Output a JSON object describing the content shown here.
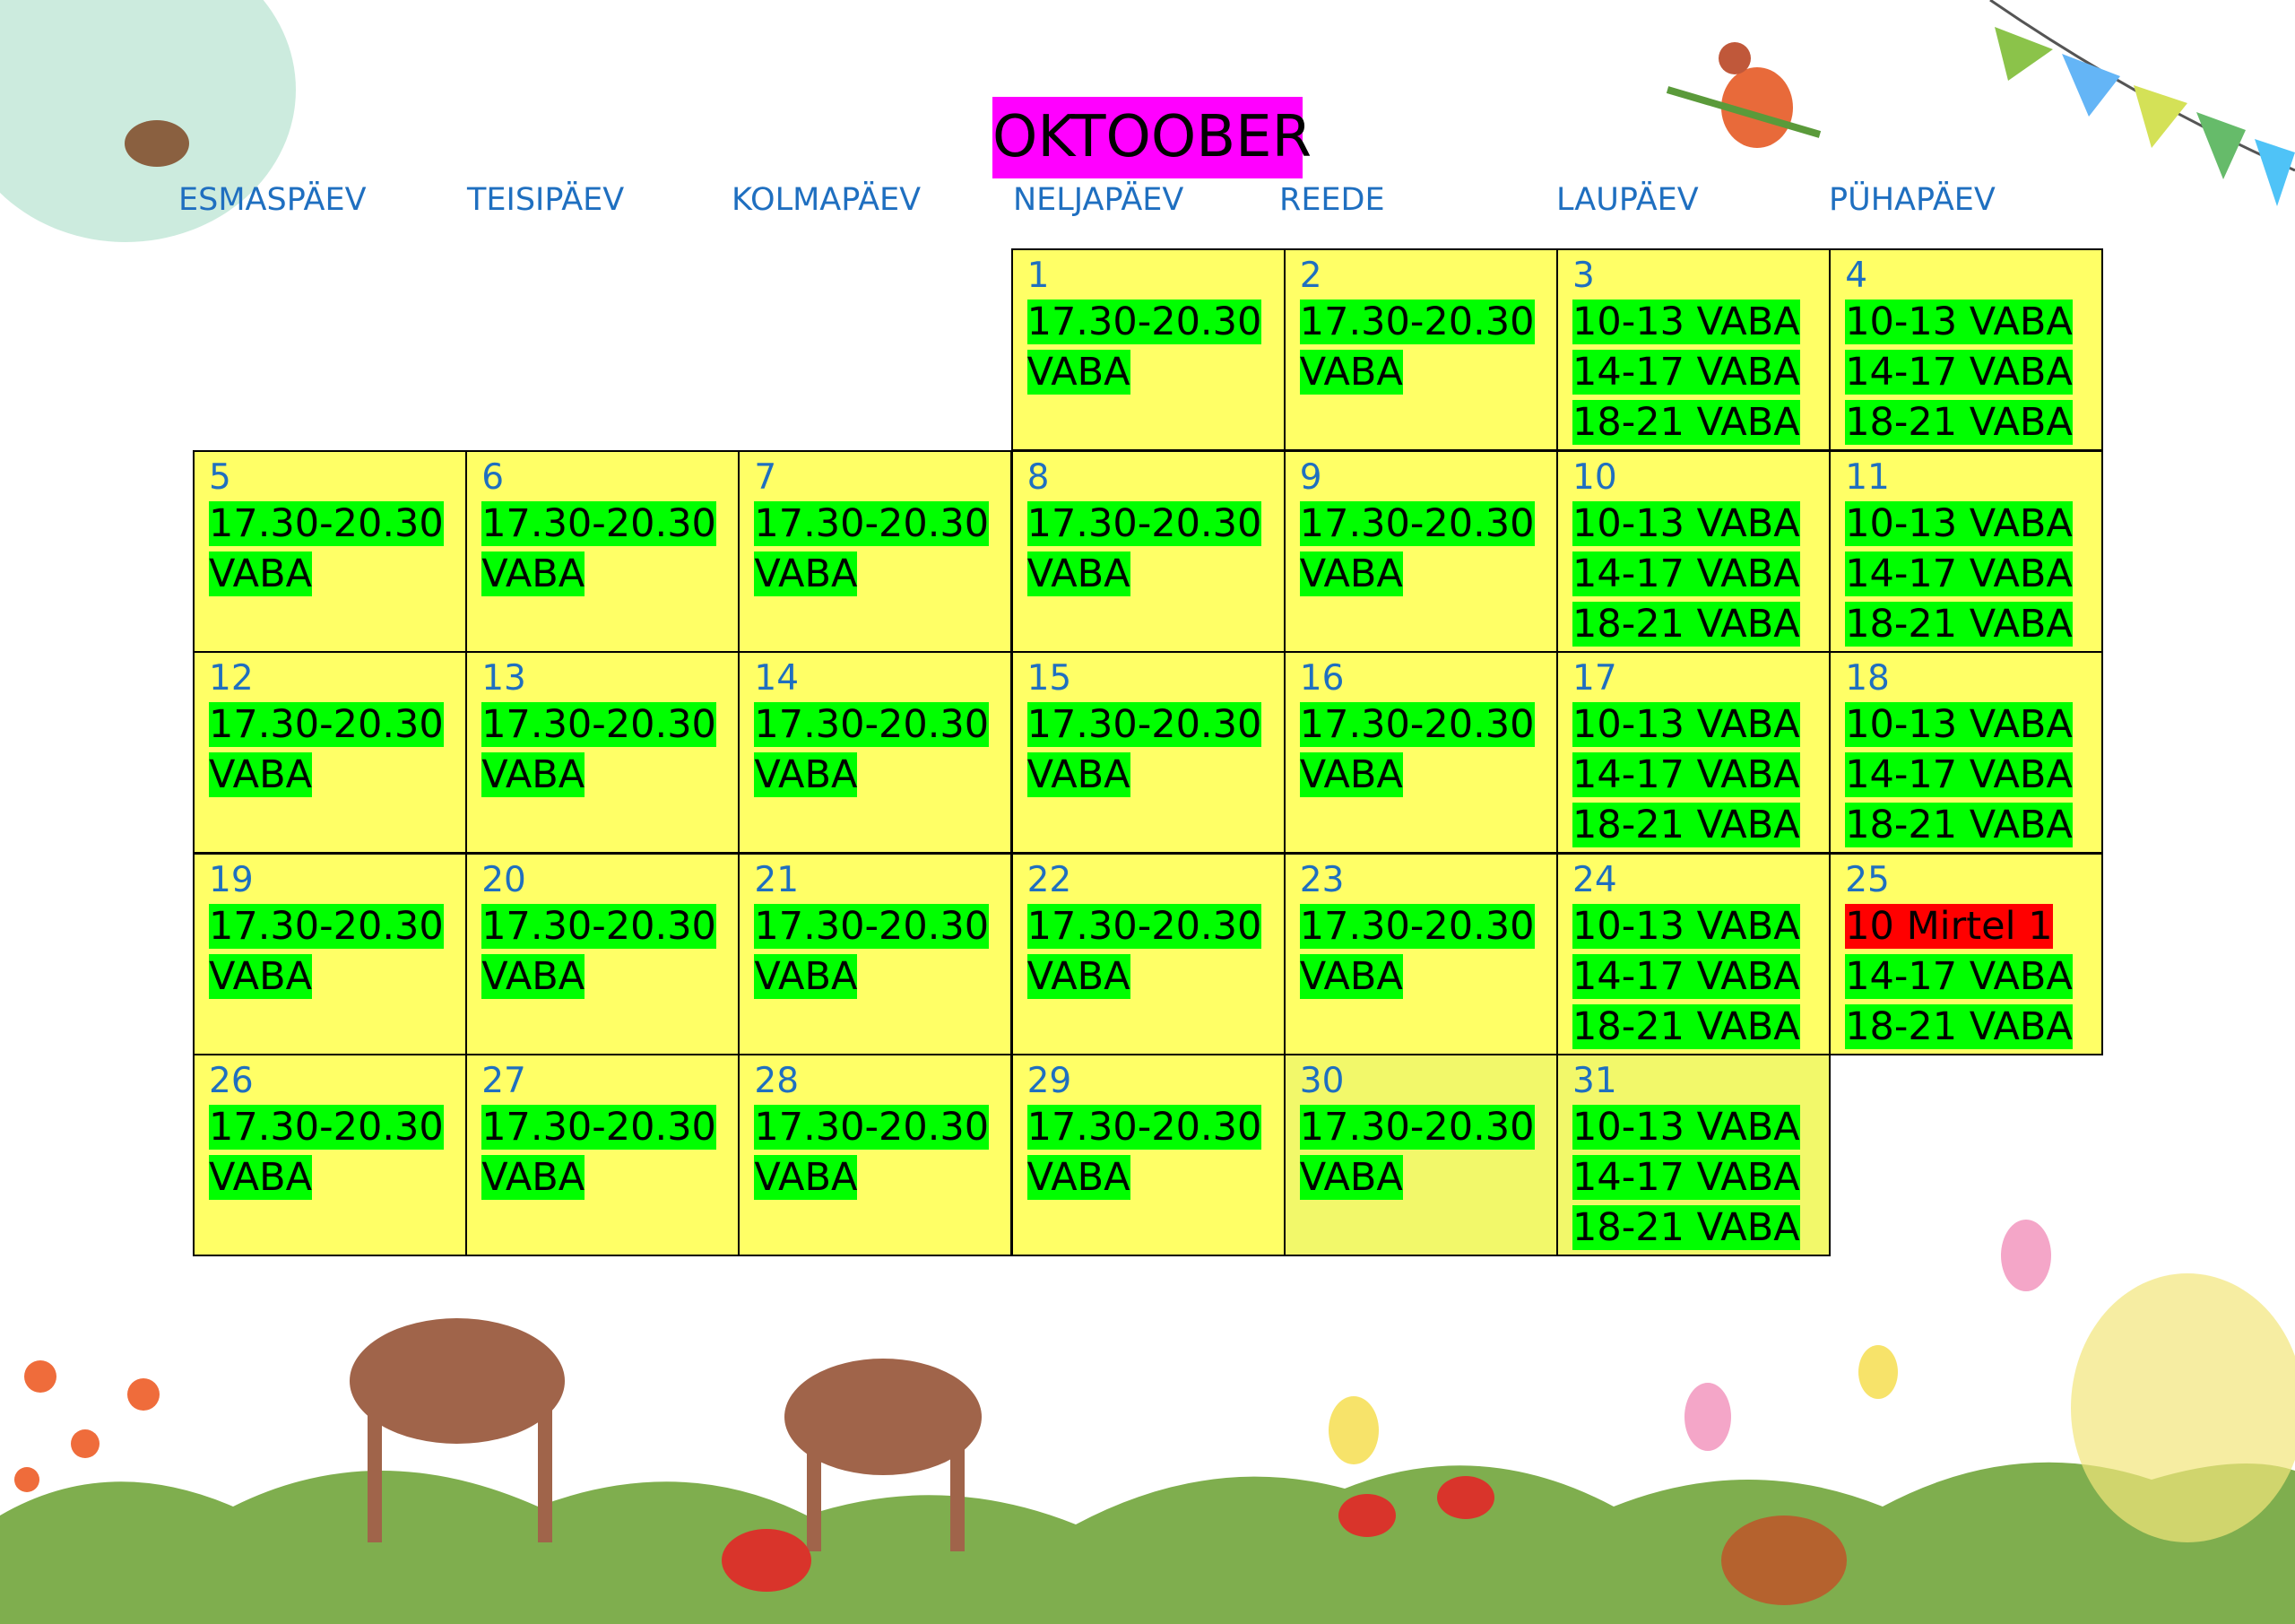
{
  "title": "OKTOOBER",
  "title_color": "#ff00ff",
  "cell_color": "#ffff66",
  "slot_color": "#00ff00",
  "weekdays": [
    "ESMASPÄEV",
    "TEISIPÄEV",
    "KOLMAPÄEV",
    "NELJAPÄEV",
    "REEDE",
    "LAUPÄEV",
    "PÜHAPÄEV"
  ],
  "days": [
    {
      "day": 1,
      "slots": [
        "17.30-20.30",
        "VABA"
      ]
    },
    {
      "day": 2,
      "slots": [
        "17.30-20.30",
        "VABA"
      ]
    },
    {
      "day": 3,
      "slots": [
        "10-13 VABA",
        "14-17 VABA",
        "18-21 VABA"
      ]
    },
    {
      "day": 4,
      "slots": [
        "10-13 VABA",
        "14-17 VABA",
        "18-21 VABA"
      ]
    },
    {
      "day": 5,
      "slots": [
        "17.30-20.30",
        "VABA"
      ]
    },
    {
      "day": 6,
      "slots": [
        "17.30-20.30",
        "VABA"
      ]
    },
    {
      "day": 7,
      "slots": [
        "17.30-20.30",
        "VABA"
      ]
    },
    {
      "day": 8,
      "slots": [
        "17.30-20.30",
        "VABA"
      ]
    },
    {
      "day": 9,
      "slots": [
        "17.30-20.30",
        "VABA"
      ]
    },
    {
      "day": 10,
      "slots": [
        "10-13 VABA",
        "14-17 VABA",
        "18-21 VABA"
      ]
    },
    {
      "day": 11,
      "slots": [
        "10-13 VABA",
        "14-17 VABA",
        "18-21 VABA"
      ]
    },
    {
      "day": 12,
      "slots": [
        "17.30-20.30",
        "VABA"
      ]
    },
    {
      "day": 13,
      "slots": [
        "17.30-20.30",
        "VABA"
      ]
    },
    {
      "day": 14,
      "slots": [
        "17.30-20.30",
        "VABA"
      ]
    },
    {
      "day": 15,
      "slots": [
        "17.30-20.30",
        "VABA"
      ]
    },
    {
      "day": 16,
      "slots": [
        "17.30-20.30",
        "VABA"
      ]
    },
    {
      "day": 17,
      "slots": [
        "10-13 VABA",
        "14-17 VABA",
        "18-21 VABA"
      ]
    },
    {
      "day": 18,
      "slots": [
        "10-13 VABA",
        "14-17 VABA",
        "18-21 VABA"
      ]
    },
    {
      "day": 19,
      "slots": [
        "17.30-20.30",
        "VABA"
      ]
    },
    {
      "day": 20,
      "slots": [
        "17.30-20.30",
        "VABA"
      ]
    },
    {
      "day": 21,
      "slots": [
        "17.30-20.30",
        "VABA"
      ]
    },
    {
      "day": 22,
      "slots": [
        "17.30-20.30",
        "VABA"
      ]
    },
    {
      "day": 23,
      "slots": [
        "17.30-20.30",
        "VABA"
      ]
    },
    {
      "day": 24,
      "slots": [
        "10-13 VABA",
        "14-17 VABA",
        "18-21 VABA"
      ]
    },
    {
      "day": 25,
      "slots": [
        {
          "text": "10 Mirtel 1",
          "color": "#ff0000"
        },
        "14-17 VABA",
        "18-21 VABA"
      ]
    },
    {
      "day": 26,
      "slots": [
        "17.30-20.30",
        "VABA"
      ]
    },
    {
      "day": 27,
      "slots": [
        "17.30-20.30",
        "VABA"
      ]
    },
    {
      "day": 28,
      "slots": [
        "17.30-20.30",
        "VABA"
      ]
    },
    {
      "day": 29,
      "slots": [
        "17.30-20.30",
        "VABA"
      ]
    },
    {
      "day": 30,
      "background": "#f2f86a",
      "slots": [
        "17.30-20.30",
        "VABA"
      ]
    },
    {
      "day": 31,
      "background": "#f2f86a",
      "slots": [
        "10-13 VABA",
        "14-17 VABA",
        "18-21 VABA"
      ]
    }
  ]
}
